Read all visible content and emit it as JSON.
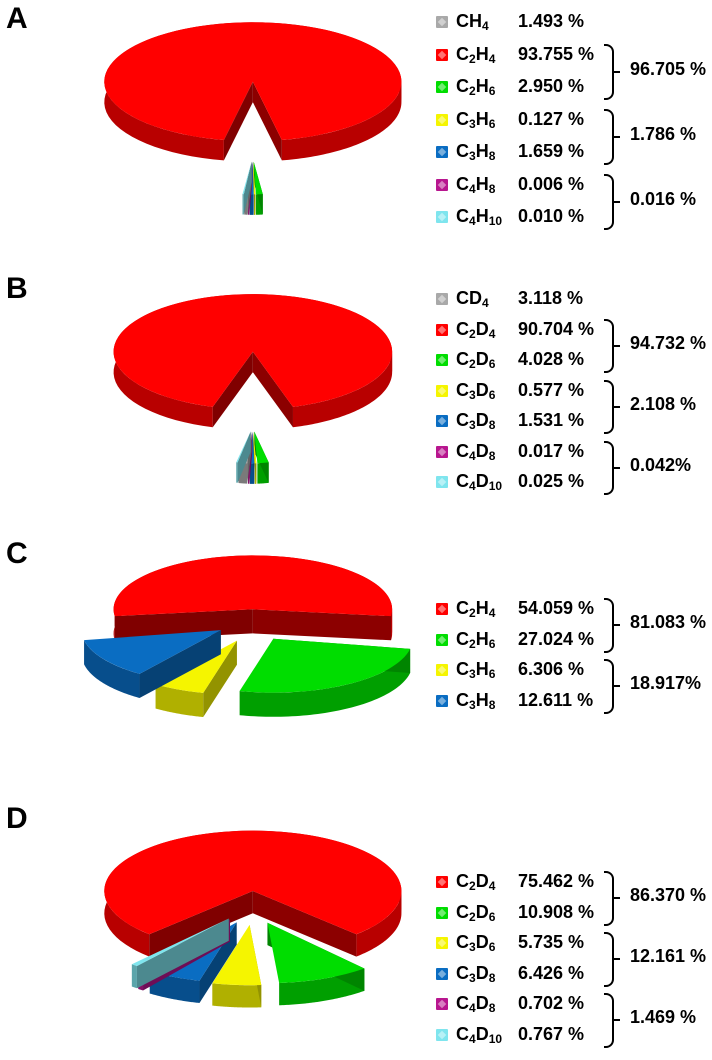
{
  "colors": {
    "red": "#ff0000",
    "green": "#00dd00",
    "gray": "#a9a9a9",
    "yellow": "#f5f500",
    "blue": "#0a6dc2",
    "magenta": "#b8168f",
    "cyan": "#7fe5ee"
  },
  "chart_data": [
    {
      "type": "pie",
      "panel_label": "A",
      "slices": [
        {
          "label": "CH4",
          "value": 1.493,
          "color": "gray",
          "formula": [
            [
              "CH",
              "4"
            ]
          ],
          "display": "1.493  %"
        },
        {
          "label": "C2H4",
          "value": 93.755,
          "color": "red",
          "formula": [
            [
              "C",
              "2"
            ],
            [
              "H",
              "4"
            ]
          ],
          "display": "93.755 %"
        },
        {
          "label": "C2H6",
          "value": 2.95,
          "color": "green",
          "formula": [
            [
              "C",
              "2"
            ],
            [
              "H",
              "6"
            ]
          ],
          "display": "2.950 %"
        },
        {
          "label": "C3H6",
          "value": 0.127,
          "color": "yellow",
          "formula": [
            [
              "C",
              "3"
            ],
            [
              "H",
              "6"
            ]
          ],
          "display": "0.127 %"
        },
        {
          "label": "C3H8",
          "value": 1.659,
          "color": "blue",
          "formula": [
            [
              "C",
              "3"
            ],
            [
              "H",
              "8"
            ]
          ],
          "display": "1.659 %"
        },
        {
          "label": "C4H8",
          "value": 0.006,
          "color": "magenta",
          "formula": [
            [
              "C",
              "4"
            ],
            [
              "H",
              "8"
            ]
          ],
          "display": "0.006 %"
        },
        {
          "label": "C4H10",
          "value": 0.01,
          "color": "cyan",
          "formula": [
            [
              "C",
              "4"
            ],
            [
              "H",
              "10"
            ]
          ],
          "display": "0.010 %"
        }
      ],
      "groups": [
        {
          "rows": [
            1,
            2
          ],
          "total": "96.705 %"
        },
        {
          "rows": [
            3,
            4
          ],
          "total": "1.786 %"
        },
        {
          "rows": [
            5,
            6
          ],
          "total": "0.016 %"
        }
      ]
    },
    {
      "type": "pie",
      "panel_label": "B",
      "slices": [
        {
          "label": "CD4",
          "value": 3.118,
          "color": "gray",
          "formula": [
            [
              "CD",
              "4"
            ]
          ],
          "display": "3.118  %"
        },
        {
          "label": "C2D4",
          "value": 90.704,
          "color": "red",
          "formula": [
            [
              "C",
              "2"
            ],
            [
              "D",
              "4"
            ]
          ],
          "display": "90.704 %"
        },
        {
          "label": "C2D6",
          "value": 4.028,
          "color": "green",
          "formula": [
            [
              "C",
              "2"
            ],
            [
              "D",
              "6"
            ]
          ],
          "display": "4.028 %"
        },
        {
          "label": "C3D6",
          "value": 0.577,
          "color": "yellow",
          "formula": [
            [
              "C",
              "3"
            ],
            [
              "D",
              "6"
            ]
          ],
          "display": "0.577 %"
        },
        {
          "label": "C3D8",
          "value": 1.531,
          "color": "blue",
          "formula": [
            [
              "C",
              "3"
            ],
            [
              "D",
              "8"
            ]
          ],
          "display": "1.531 %"
        },
        {
          "label": "C4D8",
          "value": 0.017,
          "color": "magenta",
          "formula": [
            [
              "C",
              "4"
            ],
            [
              "D",
              "8"
            ]
          ],
          "display": "0.017 %"
        },
        {
          "label": "C4D10",
          "value": 0.025,
          "color": "cyan",
          "formula": [
            [
              "C",
              "4"
            ],
            [
              "D",
              "10"
            ]
          ],
          "display": "0.025 %"
        }
      ],
      "groups": [
        {
          "rows": [
            1,
            2
          ],
          "total": "94.732 %"
        },
        {
          "rows": [
            3,
            4
          ],
          "total": "2.108 %"
        },
        {
          "rows": [
            5,
            6
          ],
          "total": "0.042%"
        }
      ]
    },
    {
      "type": "pie",
      "panel_label": "C",
      "slices": [
        {
          "label": "C2H4",
          "value": 54.059,
          "color": "red",
          "formula": [
            [
              "C",
              "2"
            ],
            [
              "H",
              "4"
            ]
          ],
          "display": "54.059 %"
        },
        {
          "label": "C2H6",
          "value": 27.024,
          "color": "green",
          "formula": [
            [
              "C",
              "2"
            ],
            [
              "H",
              "6"
            ]
          ],
          "display": "27.024 %"
        },
        {
          "label": "C3H6",
          "value": 6.306,
          "color": "yellow",
          "formula": [
            [
              "C",
              "3"
            ],
            [
              "H",
              "6"
            ]
          ],
          "display": "6.306 %"
        },
        {
          "label": "C3H8",
          "value": 12.611,
          "color": "blue",
          "formula": [
            [
              "C",
              "3"
            ],
            [
              "H",
              "8"
            ]
          ],
          "display": "12.611 %"
        }
      ],
      "groups": [
        {
          "rows": [
            0,
            1
          ],
          "total": "81.083 %"
        },
        {
          "rows": [
            2,
            3
          ],
          "total": "18.917%"
        }
      ]
    },
    {
      "type": "pie",
      "panel_label": "D",
      "slices": [
        {
          "label": "C2D4",
          "value": 75.462,
          "color": "red",
          "formula": [
            [
              "C",
              "2"
            ],
            [
              "D",
              "4"
            ]
          ],
          "display": "75.462 %"
        },
        {
          "label": "C2D6",
          "value": 10.908,
          "color": "green",
          "formula": [
            [
              "C",
              "2"
            ],
            [
              "D",
              "6"
            ]
          ],
          "display": "10.908 %"
        },
        {
          "label": "C3D6",
          "value": 5.735,
          "color": "yellow",
          "formula": [
            [
              "C",
              "3"
            ],
            [
              "D",
              "6"
            ]
          ],
          "display": "5.735 %"
        },
        {
          "label": "C3D8",
          "value": 6.426,
          "color": "blue",
          "formula": [
            [
              "C",
              "3"
            ],
            [
              "D",
              "8"
            ]
          ],
          "display": "6.426 %"
        },
        {
          "label": "C4D8",
          "value": 0.702,
          "color": "magenta",
          "formula": [
            [
              "C",
              "4"
            ],
            [
              "D",
              "8"
            ]
          ],
          "display": "0.702 %"
        },
        {
          "label": "C4D10",
          "value": 0.767,
          "color": "cyan",
          "formula": [
            [
              "C",
              "4"
            ],
            [
              "D",
              "10"
            ]
          ],
          "display": "0.767 %"
        }
      ],
      "groups": [
        {
          "rows": [
            0,
            1
          ],
          "total": "86.370 %"
        },
        {
          "rows": [
            2,
            3
          ],
          "total": "12.161 %"
        },
        {
          "rows": [
            4,
            5
          ],
          "total": "1.469 %"
        }
      ]
    }
  ]
}
